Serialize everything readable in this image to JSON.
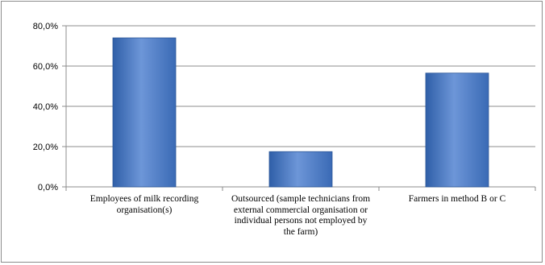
{
  "chart_data": {
    "type": "bar",
    "categories": [
      "Employees of milk recording organisation(s)",
      "Outsourced (sample technicians from external commercial organisation or individual persons not employed by the farm)",
      "Farmers in method B or C"
    ],
    "values": [
      74.0,
      17.5,
      56.5
    ],
    "ylim": [
      0,
      80
    ],
    "yticks": [
      "0,0%",
      "20,0%",
      "40,0%",
      "60,0%",
      "80,0%"
    ],
    "ytick_values": [
      0,
      20,
      40,
      60,
      80
    ],
    "grid": true,
    "legend": "none",
    "title": "",
    "xlabel": "",
    "ylabel": "",
    "colors": {
      "bar_light": "#6d96d8",
      "bar_mid": "#4a7cc7",
      "bar_dark": "#2e5ea6",
      "grid": "#8c8c8c"
    }
  }
}
